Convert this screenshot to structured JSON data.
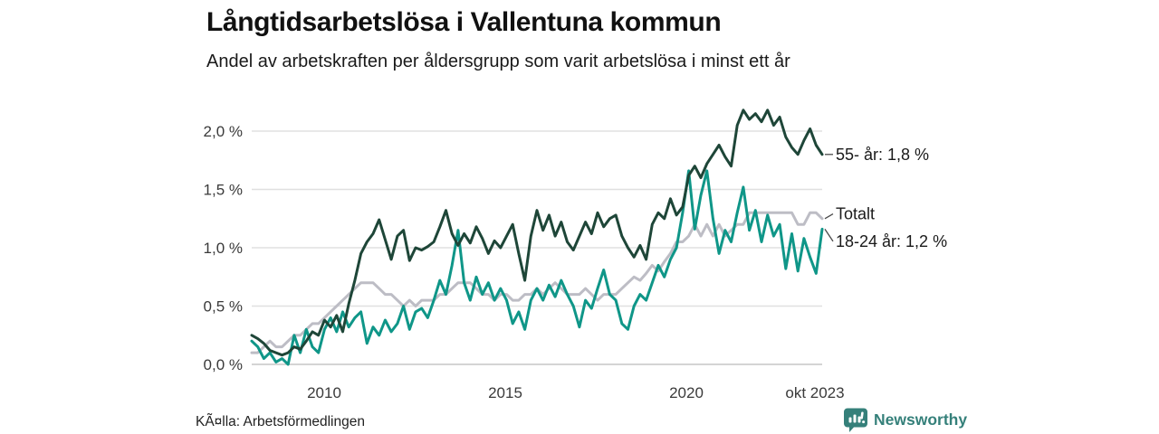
{
  "header": {
    "title": "Långtidsarbetslösa i Vallentuna kommun",
    "subtitle": "Andel av arbetskraften per åldersgrupp som varit arbetslösa i minst ett år"
  },
  "chart_data": {
    "type": "line",
    "title": "Långtidsarbetslösa i Vallentuna kommun",
    "subtitle": "Andel av arbetskraften per åldersgrupp som varit arbetslösa i minst ett år",
    "unit": "%",
    "x_start_year": 2008.0,
    "x_end_year": 2023.75,
    "x_points_per_year": 6,
    "ylim": [
      0,
      2.0
    ],
    "grid": "horizontal",
    "legend": "end-of-line-labels",
    "x_ticks": [
      {
        "label": "2010",
        "t": 2010
      },
      {
        "label": "2015",
        "t": 2015
      },
      {
        "label": "2020",
        "t": 2020
      },
      {
        "label": "okt 2023",
        "t": 2023.55
      }
    ],
    "y_ticks": [
      {
        "label": "0,0 %",
        "value": 0
      },
      {
        "label": "0,5 %",
        "value": 0.5
      },
      {
        "label": "1,0 %",
        "value": 1.0
      },
      {
        "label": "1,5 %",
        "value": 1.5
      },
      {
        "label": "2,0 %",
        "value": 2.0
      }
    ],
    "series": [
      {
        "name": "Totalt",
        "color": "#bdbdc5",
        "values": [
          0.1,
          0.1,
          0.15,
          0.2,
          0.15,
          0.15,
          0.2,
          0.25,
          0.25,
          0.3,
          0.35,
          0.35,
          0.4,
          0.45,
          0.5,
          0.55,
          0.6,
          0.65,
          0.7,
          0.7,
          0.7,
          0.65,
          0.6,
          0.6,
          0.55,
          0.5,
          0.55,
          0.5,
          0.55,
          0.55,
          0.55,
          0.6,
          0.6,
          0.65,
          0.7,
          0.7,
          0.7,
          0.65,
          0.6,
          0.6,
          0.55,
          0.6,
          0.6,
          0.55,
          0.55,
          0.6,
          0.6,
          0.65,
          0.6,
          0.65,
          0.7,
          0.65,
          0.6,
          0.6,
          0.6,
          0.65,
          0.6,
          0.55,
          0.6,
          0.6,
          0.6,
          0.65,
          0.7,
          0.75,
          0.72,
          0.78,
          0.85,
          0.8,
          0.88,
          0.95,
          1.05,
          1.05,
          1.1,
          1.2,
          1.1,
          1.2,
          1.1,
          1.2,
          1.1,
          1.15,
          1.2,
          1.2,
          1.3,
          1.3,
          1.3,
          1.3,
          1.3,
          1.3,
          1.3,
          1.3,
          1.2,
          1.2,
          1.3,
          1.3,
          1.25
        ]
      },
      {
        "name": "18-24 år",
        "color": "#0f9688",
        "values": [
          0.2,
          0.15,
          0.05,
          0.1,
          0.02,
          0.05,
          0.0,
          0.25,
          0.1,
          0.3,
          0.15,
          0.1,
          0.3,
          0.4,
          0.28,
          0.45,
          0.32,
          0.4,
          0.45,
          0.18,
          0.32,
          0.25,
          0.38,
          0.28,
          0.35,
          0.5,
          0.3,
          0.45,
          0.48,
          0.4,
          0.55,
          0.72,
          0.6,
          0.85,
          1.15,
          0.7,
          0.55,
          0.75,
          0.6,
          0.7,
          0.55,
          0.65,
          0.55,
          0.35,
          0.45,
          0.3,
          0.55,
          0.65,
          0.55,
          0.68,
          0.58,
          0.72,
          0.6,
          0.5,
          0.32,
          0.55,
          0.48,
          0.65,
          0.81,
          0.6,
          0.55,
          0.35,
          0.3,
          0.5,
          0.6,
          0.55,
          0.7,
          0.85,
          0.75,
          0.9,
          1.0,
          1.3,
          1.66,
          1.16,
          1.45,
          1.66,
          1.25,
          0.95,
          1.15,
          1.05,
          1.3,
          1.52,
          1.15,
          1.32,
          1.05,
          1.28,
          1.1,
          1.2,
          0.82,
          1.12,
          0.8,
          1.08,
          0.92,
          0.78,
          1.16
        ]
      },
      {
        "name": "55- år",
        "color": "#1e4638",
        "values": [
          0.25,
          0.22,
          0.18,
          0.12,
          0.1,
          0.08,
          0.1,
          0.15,
          0.13,
          0.2,
          0.28,
          0.25,
          0.38,
          0.32,
          0.42,
          0.28,
          0.52,
          0.72,
          0.95,
          1.05,
          1.12,
          1.24,
          1.07,
          0.9,
          1.1,
          1.15,
          0.89,
          1.0,
          0.98,
          1.01,
          1.05,
          1.18,
          1.32,
          1.12,
          1.02,
          1.12,
          1.04,
          1.18,
          1.08,
          0.95,
          1.06,
          1.0,
          1.1,
          1.2,
          0.95,
          0.72,
          1.1,
          1.32,
          1.15,
          1.28,
          1.1,
          1.22,
          1.05,
          0.98,
          1.1,
          1.22,
          1.12,
          1.3,
          1.18,
          1.25,
          1.28,
          1.1,
          1.0,
          0.92,
          1.02,
          0.9,
          1.2,
          1.3,
          1.25,
          1.42,
          1.28,
          1.35,
          1.62,
          1.7,
          1.6,
          1.72,
          1.8,
          1.88,
          1.78,
          1.7,
          2.05,
          2.18,
          2.1,
          2.15,
          2.08,
          2.18,
          2.05,
          2.12,
          1.95,
          1.86,
          1.8,
          1.92,
          2.02,
          1.88,
          1.8
        ]
      }
    ],
    "annotations": [
      {
        "text": "55- år: 1,8 %",
        "v_label": 1.8,
        "v_line": 1.8
      },
      {
        "text": "Totalt",
        "v_label": 1.29,
        "v_line": 1.25
      },
      {
        "text": "18-24 år: 1,2 %",
        "v_label": 1.055,
        "v_line": 1.16
      }
    ]
  },
  "footer": {
    "source": "KÃ¤lla: Arbetsförmedlingen",
    "brand": "Newsworthy"
  },
  "colors": {
    "grid": "#e0e0e0",
    "grid_zero": "#c6c6c6",
    "leader": "#4a4a4a",
    "brand_teal": "#35807a"
  }
}
